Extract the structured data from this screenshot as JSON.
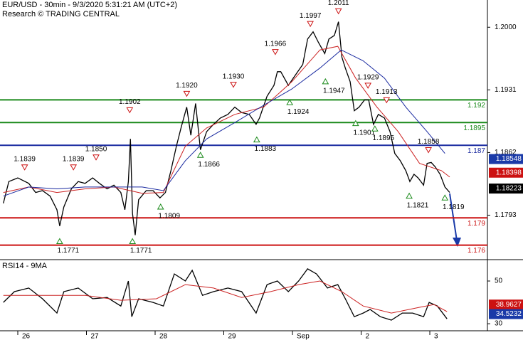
{
  "header": {
    "title": "EUR/USD - 30min - 9/3/2020 5:31:21 AM (UTC+2)",
    "subtitle": "Research © TRADING CENTRAL"
  },
  "chart_data": [
    {
      "type": "line",
      "xlim": [
        -0.259,
        6.839
      ],
      "ylim": [
        1.1744,
        1.203
      ],
      "yticks": [
        {
          "value": 1.2,
          "label": "1.2000"
        },
        1.1931,
        1.1862,
        1.1793
      ],
      "series": [
        {
          "color": "#000000",
          "x": [
            -0.21,
            -0.13,
            0,
            0.16,
            0.26,
            0.36,
            0.47,
            0.57,
            0.61,
            0.67,
            0.78,
            0.88,
            0.98,
            1.09,
            1.19,
            1.3,
            1.4,
            1.5,
            1.56,
            1.61,
            1.64,
            1.67,
            1.71,
            1.76,
            1.87,
            1.97,
            2.07,
            2.15,
            2.23,
            2.31,
            2.38,
            2.46,
            2.52,
            2.59,
            2.66,
            2.75,
            2.85,
            2.95,
            3.06,
            3.16,
            3.26,
            3.37,
            3.47,
            3.52,
            3.63,
            3.73,
            3.78,
            3.83,
            3.94,
            4.04,
            4.15,
            4.22,
            4.3,
            4.38,
            4.47,
            4.53,
            4.61,
            4.67,
            4.72,
            4.77,
            4.84,
            4.9,
            4.97,
            5.05,
            5.11,
            5.18,
            5.25,
            5.34,
            5.42,
            5.49,
            5.57,
            5.65,
            5.71,
            5.77,
            5.83,
            5.91,
            5.96,
            6.02,
            6.08,
            6.15,
            6.22,
            6.29
          ],
          "values": [
            1.1806,
            1.183,
            1.1834,
            1.1828,
            1.1818,
            1.182,
            1.1814,
            1.1799,
            1.1781,
            1.1802,
            1.1822,
            1.183,
            1.1828,
            1.1834,
            1.1828,
            1.1822,
            1.1826,
            1.1818,
            1.1799,
            1.183,
            1.1877,
            1.1795,
            1.1771,
            1.181,
            1.182,
            1.182,
            1.1812,
            1.1818,
            1.1842,
            1.1869,
            1.189,
            1.1912,
            1.1881,
            1.1916,
            1.1865,
            1.1885,
            1.1893,
            1.19,
            1.1904,
            1.1912,
            1.1906,
            1.1904,
            1.1893,
            1.19,
            1.1924,
            1.1936,
            1.1951,
            1.1951,
            1.1936,
            1.1947,
            1.1959,
            1.1987,
            1.1995,
            1.1983,
            1.1971,
            1.1987,
            1.1991,
            1.2006,
            1.1967,
            1.1955,
            1.194,
            1.1908,
            1.1912,
            1.192,
            1.192,
            1.1893,
            1.1904,
            1.19,
            1.1885,
            1.1861,
            1.1853,
            1.1842,
            1.183,
            1.1838,
            1.1834,
            1.1826,
            1.185,
            1.1851,
            1.1846,
            1.1838,
            1.1824,
            1.1818
          ]
        },
        {
          "color": "#cc2222",
          "x": [
            -0.21,
            0.16,
            0.57,
            0.98,
            1.4,
            1.81,
            2.12,
            2.44,
            2.75,
            3.16,
            3.58,
            3.99,
            4.4,
            4.66,
            4.92,
            5.23,
            5.54,
            5.85,
            6.17,
            6.29
          ],
          "values": [
            1.1818,
            1.1824,
            1.1818,
            1.1822,
            1.1824,
            1.1817,
            1.1818,
            1.1869,
            1.1889,
            1.1904,
            1.1912,
            1.194,
            1.1975,
            1.1979,
            1.1944,
            1.1912,
            1.1885,
            1.185,
            1.1842,
            1.1835
          ]
        },
        {
          "color": "#1a2aa0",
          "x": [
            -0.21,
            0.16,
            0.57,
            0.98,
            1.4,
            1.81,
            2.12,
            2.44,
            2.75,
            3.16,
            3.58,
            3.99,
            4.4,
            4.71,
            5.03,
            5.34,
            5.65,
            5.96,
            6.22
          ],
          "values": [
            1.1814,
            1.1824,
            1.1822,
            1.1824,
            1.1824,
            1.1824,
            1.182,
            1.1853,
            1.1877,
            1.1895,
            1.1914,
            1.1932,
            1.1955,
            1.1975,
            1.1963,
            1.1944,
            1.1912,
            1.1885,
            1.1861
          ]
        }
      ],
      "levels": [
        {
          "value": 1.192,
          "color": "#1a8a1a"
        },
        {
          "value": 1.1895,
          "color": "#1a8a1a"
        },
        {
          "value": 1.187,
          "color": "#1a2aa0"
        },
        {
          "value": 1.179,
          "color": "#cc1111"
        },
        {
          "value": 1.176,
          "color": "#cc1111"
        }
      ],
      "badges": [
        {
          "value": 1.18548,
          "color": "#1a3aa8"
        },
        {
          "value": 1.18398,
          "color": "#cc1111"
        },
        {
          "value": 1.18223,
          "color": "#000000"
        }
      ],
      "annotations": [
        {
          "value": 1.1839,
          "x": 0.1,
          "kind": "high"
        },
        {
          "value": 1.1839,
          "x": 0.81,
          "kind": "high"
        },
        {
          "value": {
            "value": 1.185,
            "label": "1.1850"
          },
          "x": 1.14,
          "kind": "high"
        },
        {
          "value": 1.1902,
          "x": 1.63,
          "kind": "high"
        },
        {
          "value": {
            "value": 1.192,
            "label": "1.1920"
          },
          "x": 2.46,
          "kind": "high"
        },
        {
          "value": {
            "value": 1.193,
            "label": "1.1930"
          },
          "x": 3.14,
          "kind": "high"
        },
        {
          "value": 1.1966,
          "x": 3.75,
          "kind": "high"
        },
        {
          "value": 1.1997,
          "x": 4.26,
          "kind": "high"
        },
        {
          "value": 1.2011,
          "x": 4.67,
          "kind": "high"
        },
        {
          "value": 1.1929,
          "x": 5.1,
          "kind": "high"
        },
        {
          "value": 1.1913,
          "x": 5.37,
          "kind": "high"
        },
        {
          "value": 1.1858,
          "x": 5.98,
          "kind": "high"
        },
        {
          "value": 1.1771,
          "x": 0.61,
          "kind": "low"
        },
        {
          "value": 1.1771,
          "x": 1.67,
          "kind": "low"
        },
        {
          "value": 1.1809,
          "x": 2.08,
          "kind": "low"
        },
        {
          "value": 1.1866,
          "x": 2.66,
          "kind": "low"
        },
        {
          "value": 1.1883,
          "x": 3.48,
          "kind": "low"
        },
        {
          "value": 1.1924,
          "x": 3.96,
          "kind": "low"
        },
        {
          "value": 1.1947,
          "x": 4.48,
          "kind": "low"
        },
        {
          "value": 1.1901,
          "x": 4.92,
          "kind": "low"
        },
        {
          "value": 1.1895,
          "x": 5.2,
          "kind": "low"
        },
        {
          "value": 1.1821,
          "x": 5.7,
          "kind": "low"
        },
        {
          "value": 1.1819,
          "x": 6.22,
          "kind": "low"
        }
      ]
    },
    {
      "type": "line",
      "title": "RSI14 - 9MA",
      "xlim": [
        -0.259,
        6.839
      ],
      "ylim": [
        26.7,
        60
      ],
      "yticks": [
        50,
        30
      ],
      "xticks": [
        {
          "value": 0,
          "label": "26"
        },
        {
          "value": 1,
          "label": "27"
        },
        {
          "value": 2,
          "label": "28"
        },
        {
          "value": 3,
          "label": "29"
        },
        {
          "value": 4,
          "label": "Sep"
        },
        {
          "value": 5,
          "label": "2"
        },
        {
          "value": 6,
          "label": "3"
        }
      ],
      "series": [
        {
          "color": "#000000",
          "x": [
            -0.21,
            -0.05,
            0.16,
            0.36,
            0.57,
            0.67,
            0.88,
            1.09,
            1.3,
            1.5,
            1.61,
            1.66,
            1.76,
            1.97,
            2.12,
            2.28,
            2.44,
            2.54,
            2.69,
            2.85,
            3.06,
            3.26,
            3.47,
            3.63,
            3.78,
            3.94,
            4.09,
            4.22,
            4.35,
            4.51,
            4.66,
            4.77,
            4.9,
            5.03,
            5.13,
            5.28,
            5.44,
            5.6,
            5.75,
            5.91,
            5.99,
            6.11,
            6.25
          ],
          "values": [
            40,
            45,
            46.7,
            41.7,
            35,
            45,
            46.7,
            41.7,
            42.3,
            38.3,
            50,
            33.3,
            41.7,
            40,
            38.3,
            53.3,
            50,
            55,
            43.3,
            45,
            46.7,
            45,
            35,
            48.3,
            50,
            45,
            50,
            55.7,
            53.3,
            46.7,
            48.3,
            41.7,
            33.3,
            35,
            36.7,
            33.3,
            31.7,
            35,
            35,
            33.3,
            40,
            38.3,
            32.3
          ]
        },
        {
          "color": "#cc2222",
          "x": [
            -0.21,
            0.36,
            0.98,
            1.5,
            2.02,
            2.44,
            2.85,
            3.26,
            3.68,
            4.09,
            4.4,
            4.72,
            5.03,
            5.44,
            5.85,
            6.06,
            6.25
          ],
          "values": [
            43.3,
            43.3,
            43.3,
            41,
            41.7,
            48.3,
            46.7,
            42.3,
            45,
            48.3,
            50,
            45,
            38.3,
            35,
            37.7,
            39,
            35.7
          ]
        }
      ],
      "badges": [
        {
          "value": 38.9627,
          "color": "#cc1111"
        },
        {
          "value": 34.5232,
          "color": "#1a3aa8"
        }
      ]
    }
  ]
}
